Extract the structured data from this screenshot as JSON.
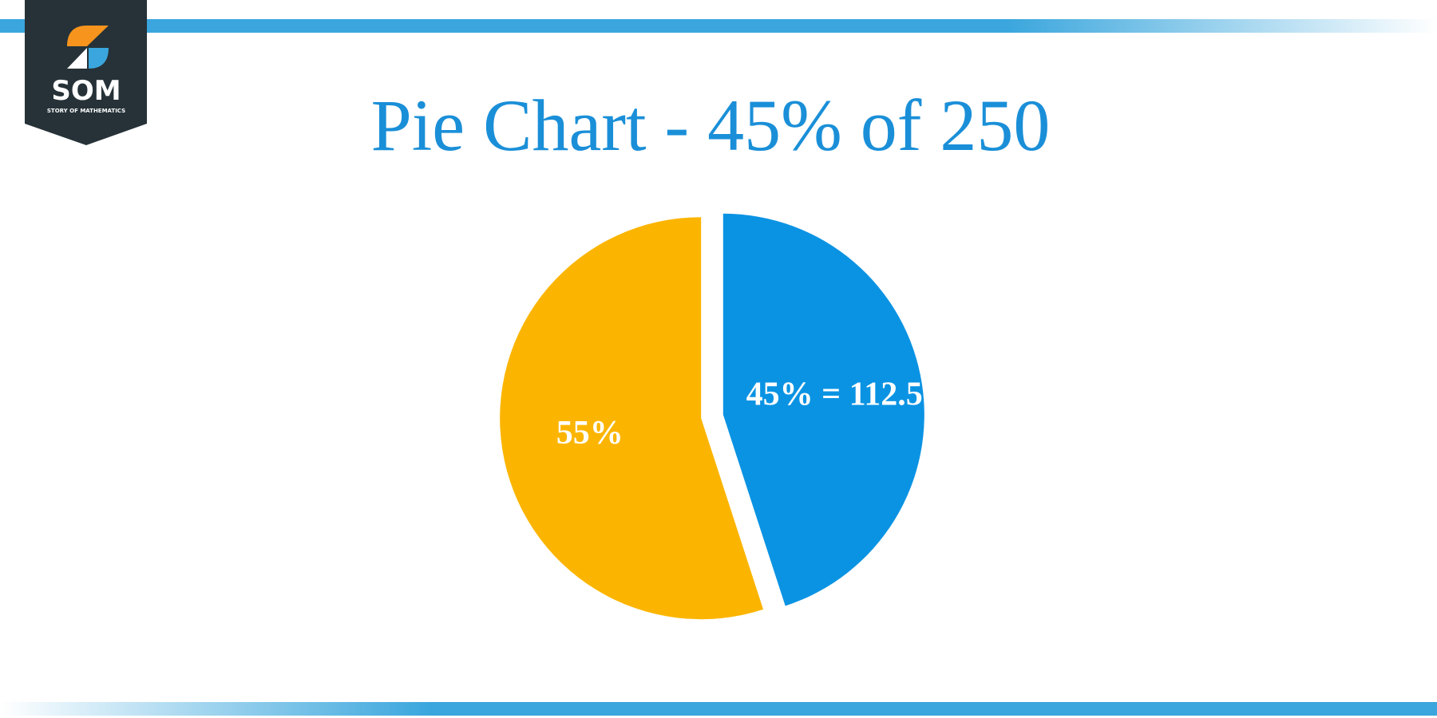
{
  "logo": {
    "text": "SOM",
    "subtitle": "STORY OF MATHEMATICS"
  },
  "chart_data": {
    "type": "pie",
    "title": "Pie Chart - 45% of 250",
    "values": [
      45,
      55
    ],
    "value_labels": [
      "45% = 112.5",
      "55%"
    ],
    "colors": [
      "#0b93e3",
      "#fbb500"
    ]
  }
}
